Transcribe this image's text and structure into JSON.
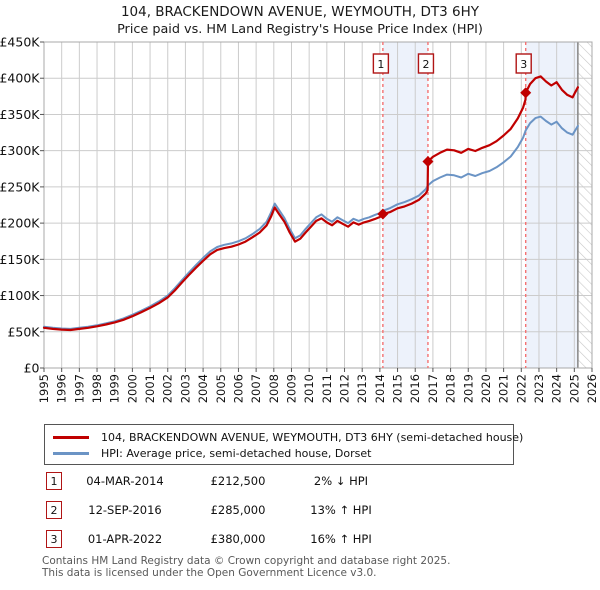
{
  "title": {
    "line1": "104, BRACKENDOWN AVENUE, WEYMOUTH, DT3 6HY",
    "line2": "Price paid vs. HM Land Registry's House Price Index (HPI)"
  },
  "legend": [
    {
      "label": "104, BRACKENDOWN AVENUE, WEYMOUTH, DT3 6HY (semi-detached house)",
      "color": "#c00000"
    },
    {
      "label": "HPI: Average price, semi-detached house, Dorset",
      "color": "#6b94c5"
    }
  ],
  "transactions": [
    {
      "num": "1",
      "date": "04-MAR-2014",
      "price": "£212,500",
      "hpi": "2% ↓ HPI"
    },
    {
      "num": "2",
      "date": "12-SEP-2016",
      "price": "£285,000",
      "hpi": "13% ↑ HPI"
    },
    {
      "num": "3",
      "date": "01-APR-2022",
      "price": "£380,000",
      "hpi": "16% ↑ HPI"
    }
  ],
  "footer": {
    "line1": "Contains HM Land Registry data © Crown copyright and database right 2025.",
    "line2": "This data is licensed under the Open Government Licence v3.0."
  },
  "chart_data": {
    "type": "line",
    "title": "104, BRACKENDOWN AVENUE, WEYMOUTH, DT3 6HY — Price paid vs. HM Land Registry's House Price Index (HPI)",
    "unit": "GBP thousands",
    "legend_position": "bottom",
    "grid": true,
    "x_axis": {
      "min": 1995,
      "max": 2026,
      "ticks": [
        "1995",
        "1996",
        "1997",
        "1998",
        "1999",
        "2000",
        "2001",
        "2002",
        "2003",
        "2004",
        "2005",
        "2006",
        "2007",
        "2008",
        "2009",
        "2010",
        "2011",
        "2012",
        "2013",
        "2014",
        "2015",
        "2016",
        "2017",
        "2018",
        "2019",
        "2020",
        "2021",
        "2022",
        "2023",
        "2024",
        "2025",
        "2026"
      ]
    },
    "y_axis": {
      "min": 0,
      "max": 450000,
      "ticks": [
        {
          "value": 0,
          "label": "£0"
        },
        {
          "value": 50,
          "label": "£50K"
        },
        {
          "value": 100,
          "label": "£100K"
        },
        {
          "value": 150,
          "label": "£150K"
        },
        {
          "value": 200,
          "label": "£200K"
        },
        {
          "value": 250,
          "label": "£250K"
        },
        {
          "value": 300,
          "label": "£300K"
        },
        {
          "value": 350,
          "label": "£350K"
        },
        {
          "value": 400,
          "label": "£400K"
        },
        {
          "value": 450,
          "label": "£450K"
        }
      ]
    },
    "colors": {
      "property_line": "#c00000",
      "hpi_line": "#6b94c5",
      "sale_dashed_line": "#f47272",
      "sale_marker": "#c00000",
      "number_box_border": "#b01515",
      "shaded_band": "#edf2fb",
      "grid": "#cccccc",
      "plot_border": "#a8a8a8",
      "hatch_line": "#c8c8c8",
      "hatch_border": "#8c8c8c",
      "tick": "#555555"
    },
    "sales": [
      {
        "num": "1",
        "year": 2014.17,
        "date": "04-MAR-2014",
        "price_k": 212.5
      },
      {
        "num": "2",
        "year": 2016.72,
        "date": "12-SEP-2016",
        "price_k": 285
      },
      {
        "num": "3",
        "year": 2022.25,
        "date": "01-APR-2022",
        "price_k": 380
      }
    ],
    "shaded_spans": [
      [
        2014.17,
        2016.72
      ],
      [
        2022.25,
        2025.2
      ]
    ],
    "future_span": [
      2025.2,
      2026
    ],
    "series": [
      {
        "name": "104, BRACKENDOWN AVENUE, WEYMOUTH, DT3 6HY (semi-detached house)",
        "points": [
          [
            1995.0,
            55.5
          ],
          [
            1995.5,
            54
          ],
          [
            1996.0,
            53
          ],
          [
            1996.5,
            52.5
          ],
          [
            1997.0,
            54
          ],
          [
            1997.5,
            55.5
          ],
          [
            1998.0,
            57.5
          ],
          [
            1998.5,
            60
          ],
          [
            1999.0,
            63
          ],
          [
            1999.5,
            66.5
          ],
          [
            2000.0,
            71.5
          ],
          [
            2000.5,
            77
          ],
          [
            2001.0,
            83
          ],
          [
            2001.5,
            89.5
          ],
          [
            2002.0,
            97.5
          ],
          [
            2002.4,
            107
          ],
          [
            2002.8,
            118
          ],
          [
            2003.2,
            128.5
          ],
          [
            2003.6,
            138.5
          ],
          [
            2004.0,
            148
          ],
          [
            2004.4,
            157
          ],
          [
            2004.8,
            163
          ],
          [
            2005.2,
            165.5
          ],
          [
            2005.6,
            167.5
          ],
          [
            2006.0,
            170.5
          ],
          [
            2006.4,
            174.5
          ],
          [
            2006.8,
            180.5
          ],
          [
            2007.2,
            187
          ],
          [
            2007.6,
            197
          ],
          [
            2007.85,
            209.5
          ],
          [
            2008.05,
            221.5
          ],
          [
            2008.3,
            212.5
          ],
          [
            2008.6,
            202
          ],
          [
            2008.9,
            187
          ],
          [
            2009.2,
            174.5
          ],
          [
            2009.5,
            178.5
          ],
          [
            2009.8,
            187
          ],
          [
            2010.1,
            195
          ],
          [
            2010.4,
            203
          ],
          [
            2010.7,
            206.5
          ],
          [
            2011.0,
            201
          ],
          [
            2011.3,
            197
          ],
          [
            2011.6,
            203
          ],
          [
            2011.9,
            199
          ],
          [
            2012.2,
            195
          ],
          [
            2012.5,
            201
          ],
          [
            2012.8,
            198
          ],
          [
            2013.1,
            201
          ],
          [
            2013.4,
            203
          ],
          [
            2013.7,
            205.5
          ],
          [
            2014.0,
            208.5
          ],
          [
            2014.17,
            212.5
          ],
          [
            2014.6,
            215.5
          ],
          [
            2015.0,
            220.5
          ],
          [
            2015.4,
            223
          ],
          [
            2015.8,
            227
          ],
          [
            2016.2,
            232
          ],
          [
            2016.6,
            241
          ],
          [
            2016.7,
            245.5
          ],
          [
            2016.72,
            285
          ],
          [
            2017.0,
            291.5
          ],
          [
            2017.4,
            297
          ],
          [
            2017.8,
            301.5
          ],
          [
            2018.2,
            300.5
          ],
          [
            2018.6,
            297
          ],
          [
            2019.0,
            302.5
          ],
          [
            2019.4,
            299.5
          ],
          [
            2019.8,
            304
          ],
          [
            2020.2,
            307.5
          ],
          [
            2020.6,
            313
          ],
          [
            2021.0,
            321
          ],
          [
            2021.4,
            330
          ],
          [
            2021.8,
            344.5
          ],
          [
            2022.1,
            359.5
          ],
          [
            2022.24,
            370.5
          ],
          [
            2022.25,
            380
          ],
          [
            2022.5,
            392
          ],
          [
            2022.8,
            400
          ],
          [
            2023.1,
            402.5
          ],
          [
            2023.4,
            395.5
          ],
          [
            2023.7,
            390
          ],
          [
            2024.0,
            394.5
          ],
          [
            2024.3,
            384
          ],
          [
            2024.6,
            377
          ],
          [
            2024.9,
            373.5
          ],
          [
            2025.05,
            380.5
          ],
          [
            2025.2,
            387.5
          ]
        ]
      },
      {
        "name": "HPI: Average price, semi-detached house, Dorset",
        "points": [
          [
            1995.0,
            57
          ],
          [
            1995.5,
            55.5
          ],
          [
            1996.0,
            54.5
          ],
          [
            1996.5,
            54
          ],
          [
            1997.0,
            55.5
          ],
          [
            1997.5,
            57
          ],
          [
            1998.0,
            59
          ],
          [
            1998.5,
            61.5
          ],
          [
            1999.0,
            64.5
          ],
          [
            1999.5,
            68.5
          ],
          [
            2000.0,
            73.5
          ],
          [
            2000.5,
            79
          ],
          [
            2001.0,
            85
          ],
          [
            2001.5,
            92
          ],
          [
            2002.0,
            100
          ],
          [
            2002.4,
            110
          ],
          [
            2002.8,
            121
          ],
          [
            2003.2,
            132
          ],
          [
            2003.6,
            142
          ],
          [
            2004.0,
            152
          ],
          [
            2004.4,
            161
          ],
          [
            2004.8,
            167
          ],
          [
            2005.2,
            170
          ],
          [
            2005.6,
            172
          ],
          [
            2006.0,
            175
          ],
          [
            2006.4,
            179
          ],
          [
            2006.8,
            185
          ],
          [
            2007.2,
            192
          ],
          [
            2007.6,
            202
          ],
          [
            2007.85,
            215
          ],
          [
            2008.05,
            227
          ],
          [
            2008.3,
            218
          ],
          [
            2008.6,
            207
          ],
          [
            2008.9,
            192
          ],
          [
            2009.2,
            179
          ],
          [
            2009.5,
            183
          ],
          [
            2009.8,
            192
          ],
          [
            2010.1,
            200
          ],
          [
            2010.4,
            208
          ],
          [
            2010.7,
            212
          ],
          [
            2011.0,
            206
          ],
          [
            2011.3,
            202
          ],
          [
            2011.6,
            208
          ],
          [
            2011.9,
            204
          ],
          [
            2012.2,
            200
          ],
          [
            2012.5,
            206
          ],
          [
            2012.8,
            203
          ],
          [
            2013.1,
            206
          ],
          [
            2013.4,
            208
          ],
          [
            2013.7,
            211
          ],
          [
            2014.0,
            214
          ],
          [
            2014.17,
            217
          ],
          [
            2014.6,
            221
          ],
          [
            2015.0,
            226
          ],
          [
            2015.4,
            229
          ],
          [
            2015.8,
            233
          ],
          [
            2016.2,
            238
          ],
          [
            2016.6,
            247
          ],
          [
            2016.72,
            252
          ],
          [
            2017.0,
            258
          ],
          [
            2017.4,
            263
          ],
          [
            2017.8,
            267
          ],
          [
            2018.2,
            266
          ],
          [
            2018.6,
            263
          ],
          [
            2019.0,
            268
          ],
          [
            2019.4,
            265
          ],
          [
            2019.8,
            269
          ],
          [
            2020.2,
            272
          ],
          [
            2020.6,
            277
          ],
          [
            2021.0,
            284
          ],
          [
            2021.4,
            292
          ],
          [
            2021.8,
            305
          ],
          [
            2022.1,
            318
          ],
          [
            2022.25,
            328
          ],
          [
            2022.5,
            338
          ],
          [
            2022.8,
            345
          ],
          [
            2023.1,
            347
          ],
          [
            2023.4,
            341
          ],
          [
            2023.7,
            336
          ],
          [
            2024.0,
            340
          ],
          [
            2024.3,
            331
          ],
          [
            2024.6,
            325
          ],
          [
            2024.9,
            322
          ],
          [
            2025.05,
            328
          ],
          [
            2025.2,
            334
          ]
        ]
      }
    ]
  }
}
